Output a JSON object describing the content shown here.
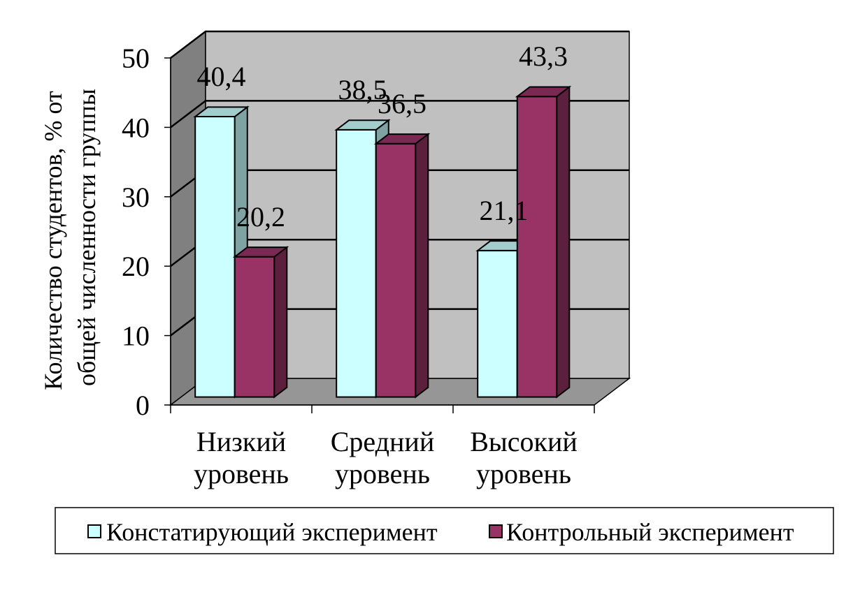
{
  "chart_data": {
    "type": "bar",
    "ylabel": [
      "Количество студентов, % от",
      "общей численности группы"
    ],
    "ylim": [
      0,
      50
    ],
    "yticks": [
      0,
      10,
      20,
      30,
      40,
      50
    ],
    "categories": [
      [
        "Низкий",
        "уровень"
      ],
      [
        "Средний",
        "уровень"
      ],
      [
        "Высокий",
        "уровень"
      ]
    ],
    "series": [
      {
        "name": "Констатирующий эксперимент",
        "values": [
          40.4,
          38.5,
          21.1
        ],
        "labels": [
          "40,4",
          "38,5",
          "21,1"
        ]
      },
      {
        "name": "Контрольный эксперимент",
        "values": [
          20.2,
          36.5,
          43.3
        ],
        "labels": [
          "20,2",
          "36,5",
          "43,3"
        ]
      }
    ],
    "grid": true,
    "legend_position": "bottom",
    "colors": {
      "series_0_front": "#CCFFFF",
      "series_0_top": "#A3CCCC",
      "series_0_side": "#7FA3A3",
      "series_1_front": "#993366",
      "series_1_top": "#7A2952",
      "series_1_side": "#5C1F3D",
      "back_wall": "#C0C0C0",
      "side_wall": "#808080",
      "floor": "#969696"
    }
  }
}
